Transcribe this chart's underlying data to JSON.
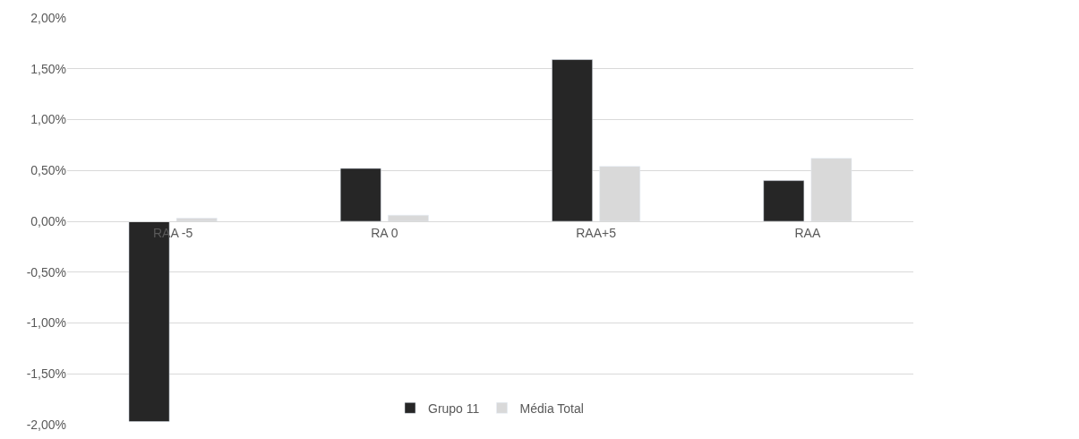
{
  "chart_data": {
    "type": "bar",
    "categories": [
      "RAA -5",
      "RA 0",
      "RAA+5",
      "RAA"
    ],
    "series": [
      {
        "name": "Grupo 11",
        "color": "#262626",
        "values": [
          -1.97,
          0.52,
          1.59,
          0.4
        ]
      },
      {
        "name": "Média Total",
        "color": "#d9d9d9",
        "values": [
          0.03,
          0.06,
          0.54,
          0.62
        ]
      }
    ],
    "ylim": [
      -2,
      2
    ],
    "yticks": [
      {
        "value": -2,
        "label": "-2,00%"
      },
      {
        "value": -1.5,
        "label": "-1,50%"
      },
      {
        "value": -1,
        "label": "-1,00%"
      },
      {
        "value": -0.5,
        "label": "-0,50%"
      },
      {
        "value": 0,
        "label": "0,00%"
      },
      {
        "value": 0.5,
        "label": "0,50%"
      },
      {
        "value": 1,
        "label": "1,00%"
      },
      {
        "value": 1.5,
        "label": "1,50%"
      },
      {
        "value": 2,
        "label": "2,00%"
      }
    ],
    "grid": "y",
    "legend": "bottom"
  }
}
